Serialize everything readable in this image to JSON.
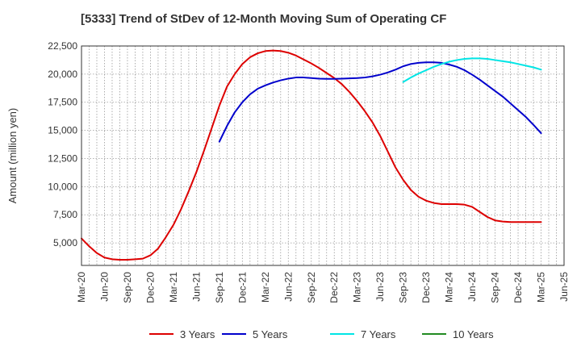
{
  "chart_data": {
    "type": "line",
    "title": "[5333]  Trend of StDev of 12-Month Moving Sum of Operating CF",
    "xlabel": "",
    "ylabel": "Amount (million yen)",
    "ylim": [
      3000,
      22500
    ],
    "yticks": [
      5000,
      7500,
      10000,
      12500,
      15000,
      17500,
      20000,
      22500
    ],
    "ytick_labels": [
      "5,000",
      "7,500",
      "10,000",
      "12,500",
      "15,000",
      "17,500",
      "20,000",
      "22,500"
    ],
    "xlim": [
      "2020-03",
      "2025-06"
    ],
    "xtick_labels": [
      "Mar-20",
      "Jun-20",
      "Sep-20",
      "Dec-20",
      "Mar-21",
      "Jun-21",
      "Sep-21",
      "Dec-21",
      "Mar-22",
      "Jun-22",
      "Sep-22",
      "Dec-22",
      "Mar-23",
      "Jun-23",
      "Sep-23",
      "Dec-23",
      "Mar-24",
      "Jun-24",
      "Sep-24",
      "Dec-24",
      "Mar-25",
      "Jun-25"
    ],
    "grid": true,
    "legend_position": "bottom",
    "series": [
      {
        "name": "3 Years",
        "color": "#dd0000",
        "x": [
          "2020-03",
          "2020-04",
          "2020-05",
          "2020-06",
          "2020-07",
          "2020-08",
          "2020-09",
          "2020-10",
          "2020-11",
          "2020-12",
          "2021-01",
          "2021-02",
          "2021-03",
          "2021-04",
          "2021-05",
          "2021-06",
          "2021-07",
          "2021-08",
          "2021-09",
          "2021-10",
          "2021-11",
          "2021-12",
          "2022-01",
          "2022-02",
          "2022-03",
          "2022-04",
          "2022-05",
          "2022-06",
          "2022-07",
          "2022-08",
          "2022-09",
          "2022-10",
          "2022-11",
          "2022-12",
          "2023-01",
          "2023-02",
          "2023-03",
          "2023-04",
          "2023-05",
          "2023-06",
          "2023-07",
          "2023-08",
          "2023-09",
          "2023-10",
          "2023-11",
          "2023-12",
          "2024-01",
          "2024-02",
          "2024-03",
          "2024-04",
          "2024-05",
          "2024-06",
          "2024-07",
          "2024-08",
          "2024-09",
          "2024-10",
          "2024-11",
          "2024-12",
          "2025-01",
          "2025-02",
          "2025-03"
        ],
        "values": [
          5400,
          4700,
          4100,
          3700,
          3550,
          3500,
          3500,
          3550,
          3600,
          3900,
          4500,
          5500,
          6600,
          8000,
          9600,
          11300,
          13200,
          15200,
          17200,
          18900,
          20000,
          20900,
          21500,
          21850,
          22050,
          22100,
          22050,
          21900,
          21650,
          21300,
          20950,
          20550,
          20100,
          19650,
          19100,
          18400,
          17600,
          16700,
          15700,
          14500,
          13100,
          11700,
          10600,
          9700,
          9100,
          8750,
          8550,
          8450,
          8450,
          8450,
          8400,
          8200,
          7750,
          7300,
          7000,
          6900,
          6850,
          6850,
          6850,
          6850,
          6850
        ]
      },
      {
        "name": "5 Years",
        "color": "#0000cc",
        "x": [
          "2021-09",
          "2021-10",
          "2021-11",
          "2021-12",
          "2022-01",
          "2022-02",
          "2022-03",
          "2022-04",
          "2022-05",
          "2022-06",
          "2022-07",
          "2022-08",
          "2022-09",
          "2022-10",
          "2022-11",
          "2022-12",
          "2023-01",
          "2023-02",
          "2023-03",
          "2023-04",
          "2023-05",
          "2023-06",
          "2023-07",
          "2023-08",
          "2023-09",
          "2023-10",
          "2023-11",
          "2023-12",
          "2024-01",
          "2024-02",
          "2024-03",
          "2024-04",
          "2024-05",
          "2024-06",
          "2024-07",
          "2024-08",
          "2024-09",
          "2024-10",
          "2024-11",
          "2024-12",
          "2025-01",
          "2025-02",
          "2025-03"
        ],
        "values": [
          14000,
          15400,
          16600,
          17500,
          18200,
          18700,
          19000,
          19250,
          19450,
          19600,
          19700,
          19700,
          19650,
          19600,
          19580,
          19580,
          19600,
          19620,
          19650,
          19700,
          19800,
          19950,
          20150,
          20400,
          20700,
          20900,
          21000,
          21050,
          21050,
          21000,
          20850,
          20650,
          20350,
          19950,
          19500,
          19000,
          18500,
          18000,
          17400,
          16800,
          16200,
          15500,
          14750
        ]
      },
      {
        "name": "7 Years",
        "color": "#00e5e5",
        "x": [
          "2023-09",
          "2023-10",
          "2023-11",
          "2023-12",
          "2024-01",
          "2024-02",
          "2024-03",
          "2024-04",
          "2024-05",
          "2024-06",
          "2024-07",
          "2024-08",
          "2024-09",
          "2024-10",
          "2024-11",
          "2024-12",
          "2025-01",
          "2025-02",
          "2025-03"
        ],
        "values": [
          19300,
          19700,
          20050,
          20350,
          20650,
          20900,
          21100,
          21250,
          21350,
          21400,
          21400,
          21350,
          21250,
          21150,
          21050,
          20900,
          20750,
          20600,
          20400
        ]
      },
      {
        "name": "10 Years",
        "color": "#228b22",
        "x": [],
        "values": []
      }
    ]
  }
}
